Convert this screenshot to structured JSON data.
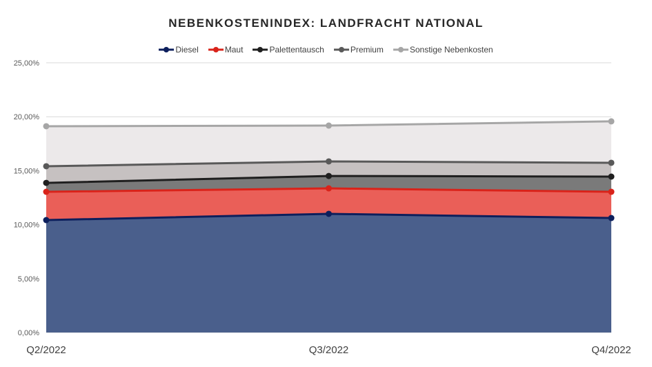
{
  "chart_data": {
    "type": "area",
    "stacked_display": true,
    "title": "NEBENKOSTENINDEX: LANDFRACHT NATIONAL",
    "categories": [
      "Q2/2022",
      "Q3/2022",
      "Q4/2022"
    ],
    "ylim": [
      0,
      25
    ],
    "yticks": [
      "0,00%",
      "5,00%",
      "10,00%",
      "15,00%",
      "20,00%",
      "25,00%"
    ],
    "ytick_values": [
      0,
      5,
      10,
      15,
      20,
      25
    ],
    "grid": true,
    "legend": "top",
    "series": [
      {
        "name": "Diesel",
        "values": [
          10.42,
          11.0,
          10.61
        ],
        "line_color": "#0d1f5c",
        "fill_color": "#4a5f8c"
      },
      {
        "name": "Maut",
        "values": [
          13.04,
          13.36,
          13.04
        ],
        "line_color": "#d9231a",
        "fill_color": "#ea5f58"
      },
      {
        "name": "Palettentausch",
        "values": [
          13.87,
          14.51,
          14.45
        ],
        "line_color": "#1f1f1f",
        "fill_color": "#7a7a7a"
      },
      {
        "name": "Premium",
        "values": [
          15.41,
          15.86,
          15.73
        ],
        "line_color": "#595959",
        "fill_color": "#c6c1c1"
      },
      {
        "name": "Sonstige Nebenkosten",
        "values": [
          19.12,
          19.18,
          19.57
        ],
        "line_color": "#a6a6a6",
        "fill_color": "#ece9ea"
      }
    ]
  }
}
